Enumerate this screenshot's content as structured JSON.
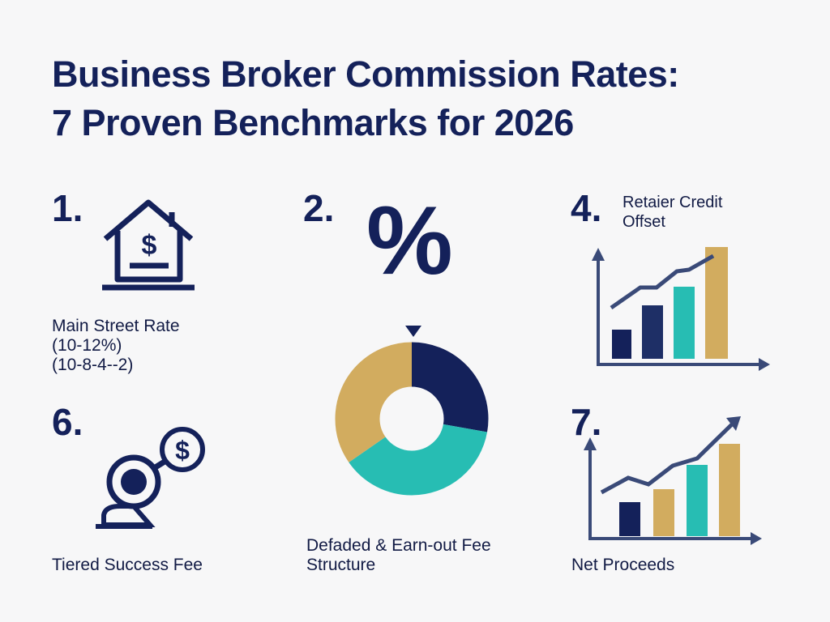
{
  "header": {
    "title_lines": [
      "Business Broker Commission Rates:",
      "7 Proven Benchmarks for 2026"
    ]
  },
  "items": [
    {
      "number": "1.",
      "label_lines": [
        "Main Street Rate",
        "(10-12%)",
        "(10-8-4--2)"
      ]
    },
    {
      "number": "2.",
      "symbol": "%",
      "label_lines": [
        "Defaded & Earn-out Fee",
        "Structure"
      ]
    },
    {
      "number": "4.",
      "label_lines": [
        "Retaier Credit",
        "Offset"
      ]
    },
    {
      "number": "6.",
      "label_lines": [
        "Tiered Success Fee"
      ]
    },
    {
      "number": "7.",
      "label_lines": [
        "Net Proceeds"
      ]
    }
  ]
}
